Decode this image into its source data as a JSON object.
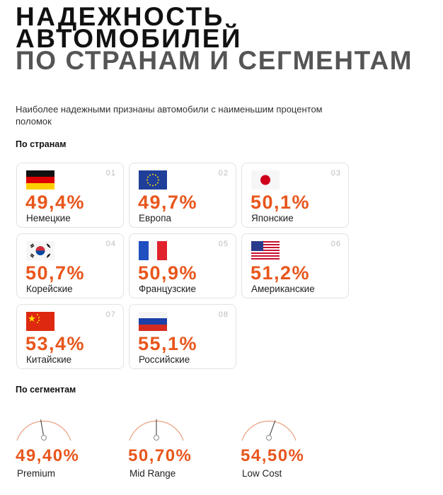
{
  "title": {
    "line1": "НАДЕЖНОСТЬ",
    "line2": "АВТОМОБИЛЕЙ",
    "line3": "ПО СТРАНАМ И СЕГМЕНТАМ"
  },
  "subtitle": "Наиболее надежными   признаны автомобили с наименьшим процентом поломок",
  "countries_heading": "По странам",
  "countries": [
    {
      "num": "01",
      "value": "49,4%",
      "label": "Немецкие",
      "flag": "germany-flag"
    },
    {
      "num": "02",
      "value": "49,7%",
      "label": "Европа",
      "flag": "eu-flag"
    },
    {
      "num": "03",
      "value": "50,1%",
      "label": "Японские",
      "flag": "japan-flag"
    },
    {
      "num": "04",
      "value": "50,7%",
      "label": "Корейские",
      "flag": "korea-flag"
    },
    {
      "num": "05",
      "value": "50,9%",
      "label": "Французские",
      "flag": "france-flag"
    },
    {
      "num": "06",
      "value": "51,2%",
      "label": "Американские",
      "flag": "usa-flag"
    },
    {
      "num": "07",
      "value": "53,4%",
      "label": "Китайские",
      "flag": "china-flag"
    },
    {
      "num": "08",
      "value": "55,1%",
      "label": "Российские",
      "flag": "russia-flag"
    }
  ],
  "segments_heading": "По сегментам",
  "segments": [
    {
      "value": "49,40%",
      "label": "Premium",
      "needle_deg": -10
    },
    {
      "value": "50,70%",
      "label": "Mid Range",
      "needle_deg": 0
    },
    {
      "value": "54,50%",
      "label": "Low Cost",
      "needle_deg": 20
    }
  ],
  "colors": {
    "accent": "#e8561c",
    "gauge": "#e9a07e"
  }
}
